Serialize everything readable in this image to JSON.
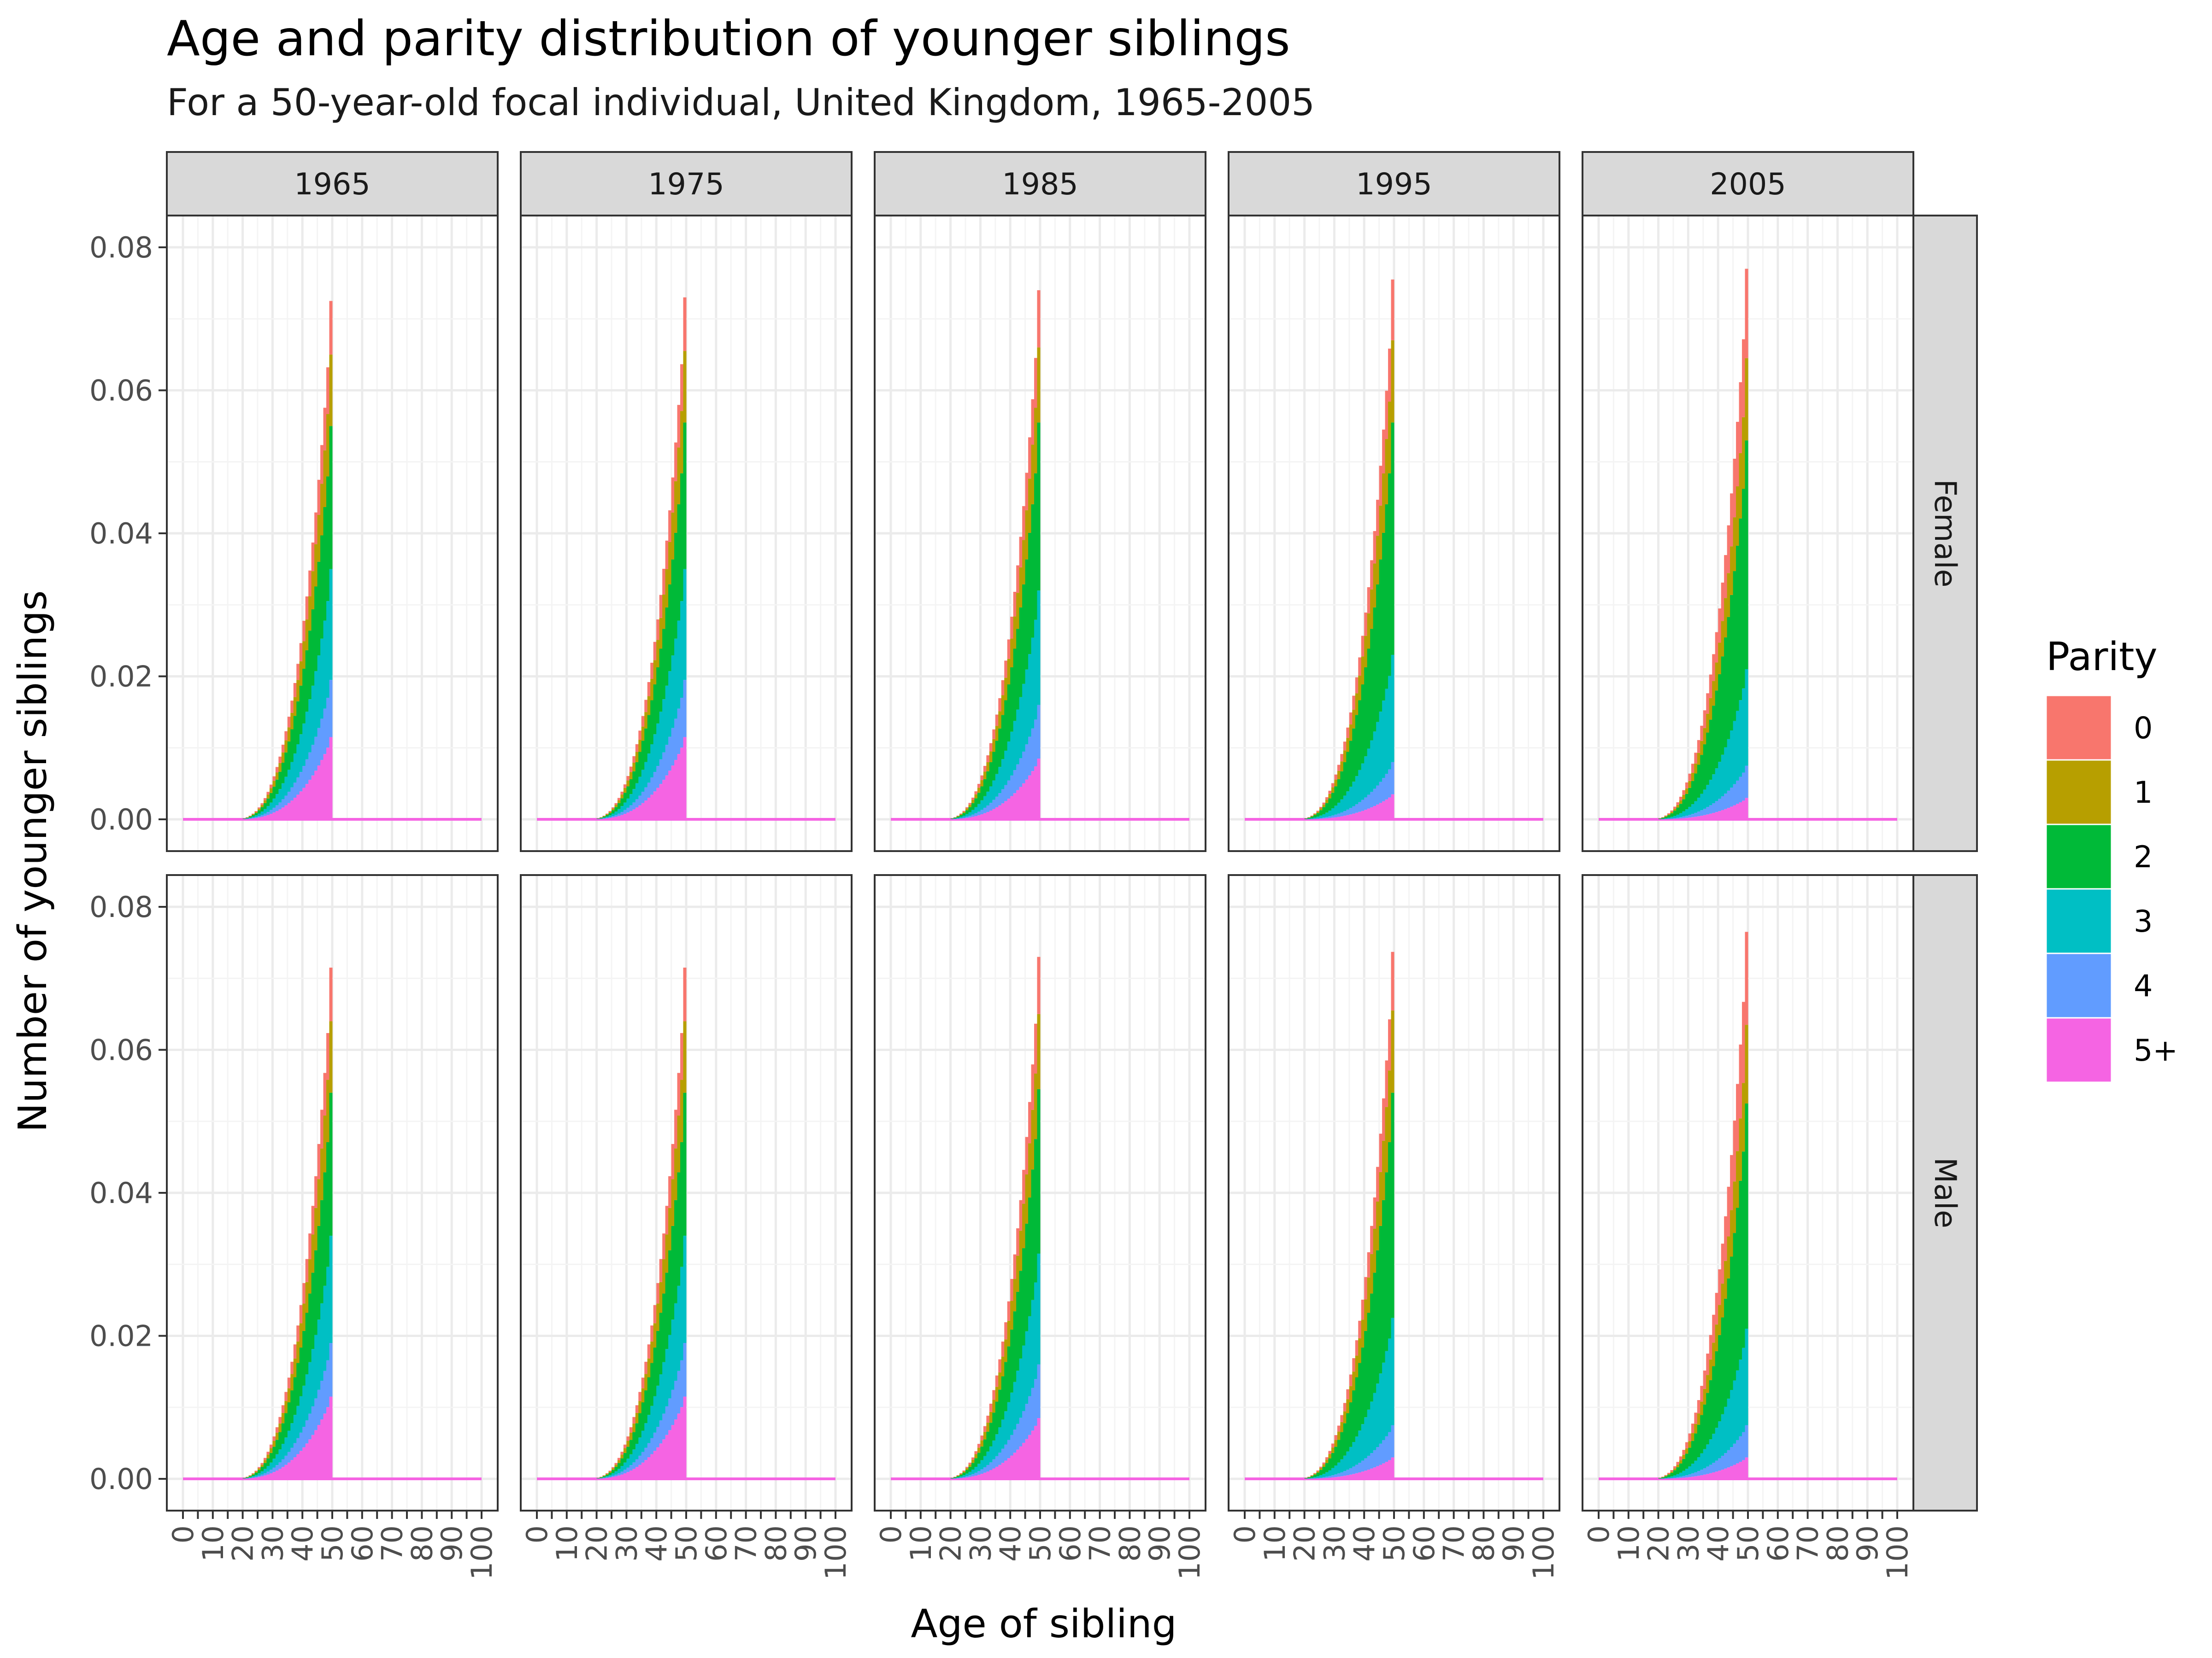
{
  "chart_data": {
    "type": "bar",
    "stacked": true,
    "title": "Age and parity distribution of younger siblings",
    "subtitle": "For a 50-year-old focal individual, United Kingdom, 1965-2005",
    "xlabel": "Age of sibling",
    "ylabel": "Number of younger siblings",
    "xlim": [
      0,
      100
    ],
    "ylim": [
      0,
      0.08
    ],
    "x_ticks": [
      "0",
      "10",
      "20",
      "30",
      "40",
      "50",
      "60",
      "70",
      "80",
      "90",
      "100"
    ],
    "y_ticks": [
      "0.00",
      "0.02",
      "0.04",
      "0.06",
      "0.08"
    ],
    "grid": true,
    "legend": {
      "title": "Parity",
      "position": "right"
    },
    "facet_columns": [
      "1965",
      "1975",
      "1985",
      "1995",
      "2005"
    ],
    "facet_rows": [
      "Female",
      "Male"
    ],
    "series": [
      {
        "name": "0",
        "color": "#F8766D"
      },
      {
        "name": "1",
        "color": "#B79F00"
      },
      {
        "name": "2",
        "color": "#00BA38"
      },
      {
        "name": "3",
        "color": "#00BFC4"
      },
      {
        "name": "4",
        "color": "#619CFF"
      },
      {
        "name": "5+",
        "color": "#F564E3"
      }
    ],
    "age_profile": {
      "description_ages": [
        20,
        21,
        22,
        23,
        24,
        25,
        26,
        27,
        28,
        29,
        30,
        31,
        32,
        33,
        34,
        35,
        36,
        37,
        38,
        39,
        40,
        41,
        42,
        43,
        44,
        45,
        46,
        47,
        48,
        49
      ],
      "relative_total": [
        0.002,
        0.004,
        0.007,
        0.011,
        0.016,
        0.023,
        0.031,
        0.041,
        0.053,
        0.067,
        0.083,
        0.101,
        0.121,
        0.144,
        0.17,
        0.198,
        0.229,
        0.263,
        0.3,
        0.34,
        0.383,
        0.43,
        0.48,
        0.534,
        0.592,
        0.655,
        0.722,
        0.794,
        0.872,
        1.0
      ]
    },
    "panels": [
      {
        "column": "1965",
        "row": "Female",
        "total_at_49": 0.0725,
        "stack_at_49": [
          0.0075,
          0.01,
          0.02,
          0.0155,
          0.008,
          0.0115
        ]
      },
      {
        "column": "1975",
        "row": "Female",
        "total_at_49": 0.073,
        "stack_at_49": [
          0.0075,
          0.01,
          0.0205,
          0.0155,
          0.008,
          0.0115
        ]
      },
      {
        "column": "1985",
        "row": "Female",
        "total_at_49": 0.074,
        "stack_at_49": [
          0.008,
          0.0105,
          0.0235,
          0.016,
          0.0075,
          0.0085
        ]
      },
      {
        "column": "1995",
        "row": "Female",
        "total_at_49": 0.0755,
        "stack_at_49": [
          0.0085,
          0.0115,
          0.0325,
          0.015,
          0.0045,
          0.0035
        ]
      },
      {
        "column": "2005",
        "row": "Female",
        "total_at_49": 0.077,
        "stack_at_49": [
          0.0125,
          0.0115,
          0.032,
          0.0135,
          0.0045,
          0.003
        ]
      },
      {
        "column": "1965",
        "row": "Male",
        "total_at_49": 0.0715,
        "stack_at_49": [
          0.0075,
          0.01,
          0.02,
          0.015,
          0.0075,
          0.0115
        ]
      },
      {
        "column": "1975",
        "row": "Male",
        "total_at_49": 0.0715,
        "stack_at_49": [
          0.0075,
          0.01,
          0.02,
          0.015,
          0.0075,
          0.0115
        ]
      },
      {
        "column": "1985",
        "row": "Male",
        "total_at_49": 0.073,
        "stack_at_49": [
          0.008,
          0.0105,
          0.023,
          0.0155,
          0.0075,
          0.0085
        ]
      },
      {
        "column": "1995",
        "row": "Male",
        "total_at_49": 0.0737,
        "stack_at_49": [
          0.0082,
          0.0115,
          0.0315,
          0.015,
          0.0045,
          0.003
        ]
      },
      {
        "column": "2005",
        "row": "Male",
        "total_at_49": 0.0762,
        "stack_at_49": [
          0.013,
          0.011,
          0.0315,
          0.0135,
          0.0045,
          0.003
        ]
      }
    ]
  }
}
